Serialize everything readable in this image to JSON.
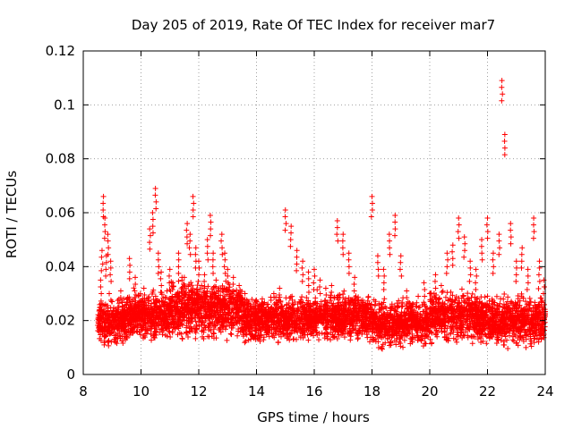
{
  "chart_data": {
    "type": "scatter",
    "title": "Day 205 of 2019, Rate Of TEC Index for receiver mar7",
    "xlabel": "GPS time / hours",
    "ylabel": "ROTI / TECUs",
    "xlim": [
      8,
      24
    ],
    "ylim": [
      0,
      0.12
    ],
    "x_ticks": [
      8,
      10,
      12,
      14,
      16,
      18,
      20,
      22,
      24
    ],
    "y_ticks": [
      0,
      0.02,
      0.04,
      0.06,
      0.08,
      0.1,
      0.12
    ],
    "x_tick_labels": [
      "8",
      "10",
      "12",
      "14",
      "16",
      "18",
      "20",
      "22",
      "24"
    ],
    "y_tick_labels": [
      "0",
      "0.02",
      "0.04",
      "0.06",
      "0.08",
      "0.1",
      "0.12"
    ],
    "grid": true,
    "marker": "+",
    "marker_color": "#ff0000",
    "series": [
      {
        "name": "ROTI",
        "x": [
          8.55,
          8.6,
          8.65,
          8.7,
          8.75,
          8.8,
          8.85,
          8.9,
          8.95,
          9.0,
          9.1,
          9.2,
          9.3,
          9.4,
          9.5,
          9.6,
          9.7,
          9.8,
          9.9,
          10.0,
          10.1,
          10.2,
          10.3,
          10.4,
          10.5,
          10.6,
          10.7,
          10.8,
          10.9,
          11.0,
          11.1,
          11.2,
          11.3,
          11.4,
          11.5,
          11.6,
          11.7,
          11.8,
          11.9,
          12.0,
          12.1,
          12.2,
          12.3,
          12.4,
          12.5,
          12.6,
          12.7,
          12.8,
          12.9,
          13.0,
          13.2,
          13.4,
          13.6,
          13.8,
          14.0,
          14.2,
          14.4,
          14.6,
          14.8,
          15.0,
          15.2,
          15.4,
          15.6,
          15.8,
          16.0,
          16.2,
          16.4,
          16.6,
          16.8,
          17.0,
          17.2,
          17.4,
          17.6,
          17.8,
          18.0,
          18.2,
          18.4,
          18.6,
          18.8,
          19.0,
          19.2,
          19.4,
          19.6,
          19.8,
          20.0,
          20.2,
          20.4,
          20.6,
          20.8,
          21.0,
          21.2,
          21.4,
          21.6,
          21.8,
          22.0,
          22.2,
          22.4,
          22.5,
          22.6,
          22.8,
          23.0,
          23.2,
          23.4,
          23.6,
          23.8,
          23.95
        ],
        "y": [
          0.021,
          0.035,
          0.046,
          0.066,
          0.058,
          0.044,
          0.052,
          0.03,
          0.042,
          0.027,
          0.022,
          0.025,
          0.031,
          0.028,
          0.026,
          0.043,
          0.027,
          0.036,
          0.025,
          0.023,
          0.032,
          0.028,
          0.054,
          0.06,
          0.069,
          0.045,
          0.038,
          0.026,
          0.031,
          0.039,
          0.034,
          0.027,
          0.045,
          0.025,
          0.036,
          0.056,
          0.052,
          0.066,
          0.047,
          0.042,
          0.033,
          0.037,
          0.05,
          0.059,
          0.045,
          0.035,
          0.028,
          0.052,
          0.045,
          0.039,
          0.036,
          0.033,
          0.03,
          0.025,
          0.027,
          0.028,
          0.025,
          0.03,
          0.032,
          0.061,
          0.055,
          0.046,
          0.042,
          0.038,
          0.039,
          0.035,
          0.032,
          0.033,
          0.057,
          0.052,
          0.045,
          0.036,
          0.025,
          0.021,
          0.066,
          0.044,
          0.039,
          0.052,
          0.059,
          0.044,
          0.031,
          0.024,
          0.029,
          0.034,
          0.03,
          0.037,
          0.033,
          0.045,
          0.048,
          0.058,
          0.051,
          0.042,
          0.039,
          0.05,
          0.058,
          0.045,
          0.052,
          0.109,
          0.089,
          0.056,
          0.042,
          0.047,
          0.039,
          0.058,
          0.042,
          0.035
        ]
      }
    ],
    "density_bands": [
      {
        "x_range": [
          8.5,
          9.5
        ],
        "y_range": [
          0.009,
          0.03
        ]
      },
      {
        "x_range": [
          9.5,
          11.0
        ],
        "y_range": [
          0.011,
          0.033
        ]
      },
      {
        "x_range": [
          11.0,
          13.5
        ],
        "y_range": [
          0.011,
          0.037
        ]
      },
      {
        "x_range": [
          13.5,
          16.0
        ],
        "y_range": [
          0.01,
          0.031
        ]
      },
      {
        "x_range": [
          16.0,
          18.0
        ],
        "y_range": [
          0.01,
          0.033
        ]
      },
      {
        "x_range": [
          18.0,
          20.0
        ],
        "y_range": [
          0.008,
          0.03
        ]
      },
      {
        "x_range": [
          20.0,
          22.0
        ],
        "y_range": [
          0.01,
          0.033
        ]
      },
      {
        "x_range": [
          22.0,
          24.0
        ],
        "y_range": [
          0.008,
          0.032
        ]
      }
    ]
  }
}
